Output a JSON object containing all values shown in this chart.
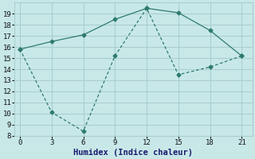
{
  "x_upper": [
    0,
    3,
    6,
    9,
    12,
    15,
    18,
    21
  ],
  "y_upper": [
    15.8,
    16.5,
    17.1,
    18.5,
    19.5,
    19.1,
    17.5,
    15.2
  ],
  "x_lower": [
    0,
    3,
    6,
    9,
    12,
    15,
    18,
    21
  ],
  "y_lower": [
    15.8,
    10.1,
    8.4,
    15.2,
    19.5,
    13.5,
    14.2,
    15.2
  ],
  "line_color": "#2e7b6e",
  "marker": "D",
  "markersize": 2.5,
  "bg_color": "#c8e8e8",
  "grid_color": "#aacece",
  "xlabel": "Humidex (Indice chaleur)",
  "xlim": [
    -0.5,
    22
  ],
  "ylim": [
    8,
    20
  ],
  "xticks": [
    0,
    3,
    6,
    9,
    12,
    15,
    18,
    21
  ],
  "yticks": [
    8,
    9,
    10,
    11,
    12,
    13,
    14,
    15,
    16,
    17,
    18,
    19
  ],
  "tick_fontsize": 6.5,
  "xlabel_fontsize": 7.5,
  "linewidth": 0.9
}
